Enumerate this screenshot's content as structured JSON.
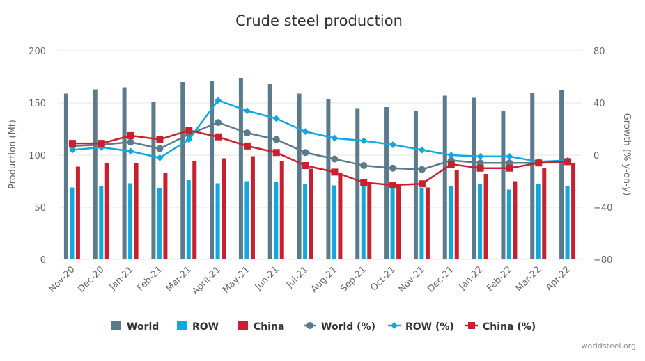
{
  "chart_data": {
    "type": "bar-line-combo",
    "title": "Crude steel production",
    "categories": [
      "Nov-20",
      "Dec-20",
      "Jan-21",
      "Feb-21",
      "Mar-21",
      "April-21",
      "May-21",
      "Jun-21",
      "Jul-21",
      "Aug-21",
      "Sep-21",
      "Oct-21",
      "Nov-21",
      "Dec-21",
      "Jan-22",
      "Feb-22",
      "Mar-22",
      "Apr-22"
    ],
    "y_left": {
      "label": "Production (Mt)",
      "min": 0,
      "max": 200,
      "ticks": [
        0,
        50,
        100,
        150,
        200
      ]
    },
    "y_right": {
      "label": "Growth (% y-on-y)",
      "min": -80,
      "max": 80,
      "ticks": [
        -80,
        -40,
        0,
        40,
        80
      ],
      "tick_labels": [
        "−80",
        "−40",
        "0",
        "40",
        "80"
      ]
    },
    "bar_series": [
      {
        "name": "World",
        "color": "#5b7b8c",
        "values": [
          159,
          163,
          165,
          151,
          170,
          171,
          174,
          168,
          159,
          154,
          145,
          146,
          142,
          157,
          155,
          142,
          160,
          162
        ]
      },
      {
        "name": "ROW",
        "color": "#11a8dd",
        "values": [
          69,
          70,
          73,
          68,
          76,
          73,
          75,
          74,
          72,
          71,
          71,
          69,
          68,
          70,
          72,
          67,
          72,
          70
        ]
      },
      {
        "name": "China",
        "color": "#c8202f",
        "values": [
          89,
          92,
          92,
          83,
          94,
          97,
          99,
          94,
          87,
          83,
          74,
          72,
          69,
          86,
          82,
          75,
          88,
          92
        ]
      }
    ],
    "line_series": [
      {
        "name": "World (%)",
        "color": "#5b7b8c",
        "marker": "circle",
        "values": [
          7,
          8,
          10,
          5,
          16,
          25,
          17,
          12,
          2,
          -3,
          -8,
          -10,
          -11,
          -4,
          -6,
          -6,
          -6,
          -5
        ]
      },
      {
        "name": "ROW (%)",
        "color": "#11a8dd",
        "marker": "diamond",
        "values": [
          4,
          6,
          3,
          -2,
          12,
          42,
          34,
          28,
          18,
          13,
          11,
          8,
          4,
          0,
          -1,
          -1,
          -5,
          -4
        ]
      },
      {
        "name": "China (%)",
        "color": "#c8202f",
        "marker": "square",
        "values": [
          9,
          9,
          15,
          12,
          19,
          14,
          7,
          2,
          -8,
          -13,
          -21,
          -23,
          -22,
          -7,
          -10,
          -10,
          -6,
          -5
        ]
      }
    ],
    "legend": {
      "position": "bottom",
      "entries": [
        "World",
        "ROW",
        "China",
        "World (%)",
        "ROW (%)",
        "China (%)"
      ]
    },
    "credit": "worldsteel.org"
  }
}
